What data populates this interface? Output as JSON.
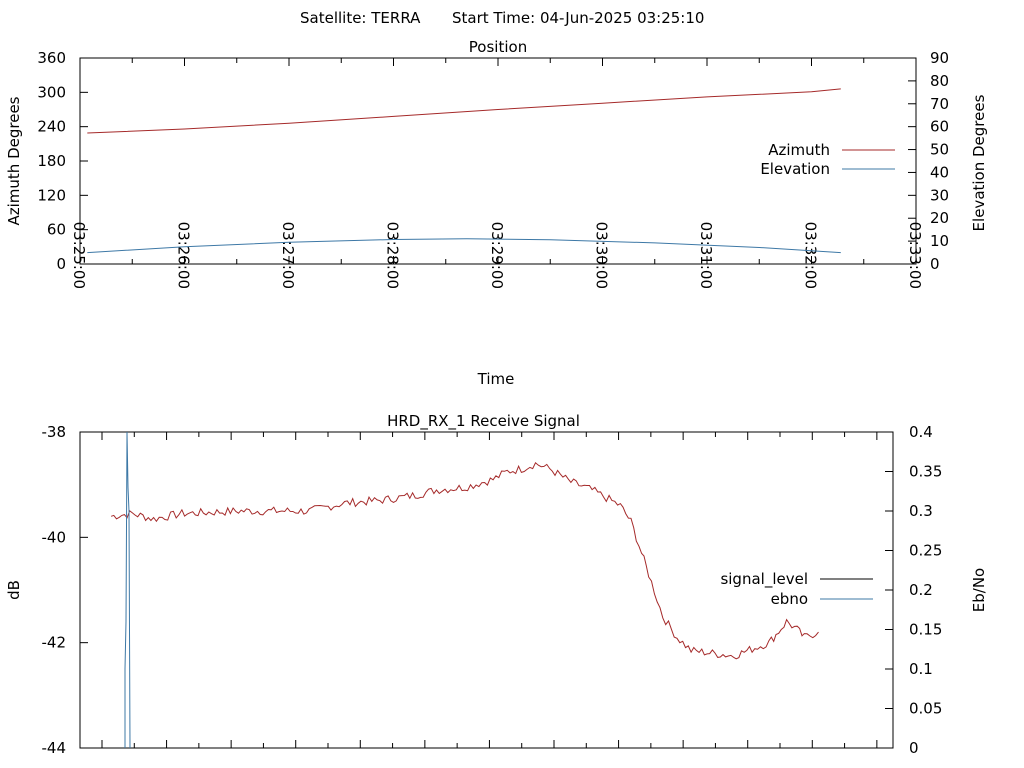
{
  "header": {
    "satellite": "Satellite: TERRA",
    "start_time": "Start Time: 04-Jun-2025 03:25:10"
  },
  "chart_data": [
    {
      "type": "line",
      "title": "Position",
      "xlabel": "Time",
      "ylabel": "Azimuth Degrees",
      "y2label": "Elevation Degrees",
      "x_ticks": [
        "03:25:00",
        "03:26:00",
        "03:27:00",
        "03:28:00",
        "03:29:00",
        "03:30:00",
        "03:31:00",
        "03:32:00",
        "03:33:00"
      ],
      "xlim_minutes": [
        0,
        8
      ],
      "ylim": [
        0,
        360
      ],
      "y_ticks": [
        "0",
        "60",
        "120",
        "180",
        "240",
        "300",
        "360"
      ],
      "y2lim": [
        0,
        90
      ],
      "y2_ticks": [
        "0",
        "10",
        "20",
        "30",
        "40",
        "50",
        "60",
        "70",
        "80",
        "90"
      ],
      "grid": false,
      "legend_position": "right",
      "series": [
        {
          "name": "Azimuth",
          "axis": "left",
          "color": "#a52a2a",
          "points": [
            [
              0.07,
              229
            ],
            [
              1.0,
              236
            ],
            [
              2.0,
              246
            ],
            [
              3.0,
              258
            ],
            [
              4.0,
              270
            ],
            [
              5.0,
              281
            ],
            [
              6.0,
              292
            ],
            [
              7.0,
              301
            ],
            [
              7.28,
              306
            ]
          ]
        },
        {
          "name": "Elevation",
          "axis": "right",
          "color": "#3d78a6",
          "points": [
            [
              0.07,
              5
            ],
            [
              1.0,
              7.5
            ],
            [
              2.0,
              9.5
            ],
            [
              3.0,
              10.7
            ],
            [
              3.7,
              11.0
            ],
            [
              4.5,
              10.6
            ],
            [
              5.5,
              9.2
            ],
            [
              6.5,
              7.2
            ],
            [
              7.28,
              5
            ]
          ]
        }
      ]
    },
    {
      "type": "line",
      "title": "HRD_RX_1 Receive Signal",
      "ylabel": "dB",
      "y2label": "Eb/No",
      "ylim": [
        -44,
        -38
      ],
      "y_ticks": [
        "-38",
        "-40",
        "-42",
        "-44"
      ],
      "y2lim": [
        0,
        0.4
      ],
      "y2_ticks": [
        "0",
        "0.05",
        "0.1",
        "0.15",
        "0.2",
        "0.25",
        "0.3",
        "0.35",
        "0.4"
      ],
      "grid": false,
      "legend_position": "right",
      "series": [
        {
          "name": "signal_level",
          "axis": "left",
          "color": "#a52a2a",
          "points": [
            [
              0.02,
              -39.6
            ],
            [
              0.05,
              -39.55
            ],
            [
              0.08,
              -39.65
            ],
            [
              0.12,
              -39.55
            ],
            [
              0.2,
              -39.5
            ],
            [
              0.3,
              -39.5
            ],
            [
              0.35,
              -39.35
            ],
            [
              0.4,
              -39.3
            ],
            [
              0.45,
              -39.2
            ],
            [
              0.48,
              -39.1
            ],
            [
              0.52,
              -39.05
            ],
            [
              0.56,
              -38.9
            ],
            [
              0.58,
              -38.75
            ],
            [
              0.6,
              -38.7
            ],
            [
              0.62,
              -38.6
            ],
            [
              0.64,
              -38.7
            ],
            [
              0.67,
              -38.95
            ],
            [
              0.7,
              -39.1
            ],
            [
              0.72,
              -39.25
            ],
            [
              0.74,
              -39.4
            ],
            [
              0.755,
              -39.7
            ],
            [
              0.77,
              -40.3
            ],
            [
              0.78,
              -40.7
            ],
            [
              0.8,
              -41.5
            ],
            [
              0.82,
              -41.9
            ],
            [
              0.84,
              -42.15
            ],
            [
              0.87,
              -42.2
            ],
            [
              0.9,
              -42.25
            ],
            [
              0.93,
              -42.1
            ],
            [
              0.95,
              -42.0
            ],
            [
              0.96,
              -41.85
            ],
            [
              0.975,
              -41.6
            ],
            [
              0.99,
              -41.75
            ],
            [
              1.0,
              -41.9
            ],
            [
              1.02,
              -41.8
            ]
          ]
        },
        {
          "name": "ebno",
          "axis": "right",
          "color": "#3d78a6",
          "points": [
            [
              0.0,
              0.0
            ]
          ]
        }
      ]
    }
  ]
}
